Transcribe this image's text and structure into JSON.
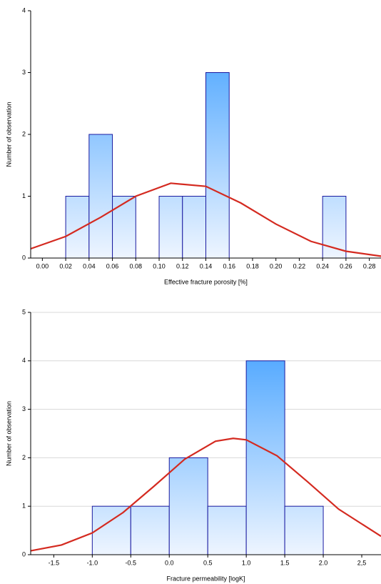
{
  "chart_data": [
    {
      "type": "histogram",
      "x_label": "Effective fracture porosity [%]",
      "y_label": "Number of observation",
      "bins": [
        0.02,
        0.04,
        0.06,
        0.08,
        0.1,
        0.12,
        0.14,
        0.16,
        0.18,
        0.2,
        0.22,
        0.24,
        0.26
      ],
      "values": [
        1,
        2,
        1,
        0,
        1,
        1,
        3,
        0,
        0,
        0,
        0,
        1
      ],
      "color": "#3399ff",
      "edge_color": "#1a1aa0",
      "curve": {
        "color": "#d42a20",
        "x": [
          -0.01,
          0.02,
          0.05,
          0.08,
          0.11,
          0.14,
          0.17,
          0.2,
          0.23,
          0.26,
          0.29
        ],
        "y": [
          0.15,
          0.35,
          0.66,
          1.0,
          1.21,
          1.16,
          0.89,
          0.55,
          0.27,
          0.11,
          0.03
        ]
      },
      "xlim": [
        -0.01,
        0.29
      ],
      "ylim": [
        0,
        4
      ],
      "xticks": [
        {
          "value": 0,
          "label": "0.00"
        },
        {
          "value": 0.02,
          "label": "0.02"
        },
        {
          "value": 0.04,
          "label": "0.04"
        },
        {
          "value": 0.06,
          "label": "0.06"
        },
        {
          "value": 0.08,
          "label": "0.08"
        },
        {
          "value": 0.1,
          "label": "0.10"
        },
        {
          "value": 0.12,
          "label": "0.12"
        },
        {
          "value": 0.14,
          "label": "0.14"
        },
        {
          "value": 0.16,
          "label": "0.16"
        },
        {
          "value": 0.18,
          "label": "0.18"
        },
        {
          "value": 0.2,
          "label": "0.20"
        },
        {
          "value": 0.22,
          "label": "0.22"
        },
        {
          "value": 0.24,
          "label": "0.24"
        },
        {
          "value": 0.26,
          "label": "0.26"
        },
        {
          "value": 0.28,
          "label": "0.28"
        }
      ],
      "yticks": [
        0,
        1,
        2,
        3,
        4
      ],
      "grid": false
    },
    {
      "type": "histogram",
      "x_label": "Fracture permeability [logK]",
      "y_label": "Number of observation",
      "bins": [
        -1.0,
        -0.5,
        0.0,
        0.5,
        1.0,
        1.5,
        2.0
      ],
      "values": [
        1,
        1,
        2,
        1,
        4,
        1
      ],
      "color": "#3399ff",
      "edge_color": "#1a1aa0",
      "curve": {
        "color": "#d42a20",
        "x": [
          -1.8,
          -1.4,
          -1.0,
          -0.6,
          -0.2,
          0.2,
          0.6,
          0.83,
          1.0,
          1.4,
          1.8,
          2.2,
          2.75
        ],
        "y": [
          0.08,
          0.2,
          0.45,
          0.87,
          1.41,
          1.97,
          2.34,
          2.4,
          2.37,
          2.04,
          1.5,
          0.94,
          0.38
        ]
      },
      "xlim": [
        -1.8,
        2.75
      ],
      "ylim": [
        0,
        5
      ],
      "xticks": [
        -1.5,
        {
          "value": -1,
          "label": "-1.0"
        },
        -0.5,
        {
          "value": 0,
          "label": "0.0"
        },
        0.5,
        {
          "value": 1,
          "label": "1.0"
        },
        1.5,
        {
          "value": 2,
          "label": "2.0"
        },
        {
          "value": 2.5,
          "label": "2,5"
        }
      ],
      "yticks": [
        0,
        1,
        2,
        3,
        4,
        5
      ],
      "grid": true
    }
  ]
}
